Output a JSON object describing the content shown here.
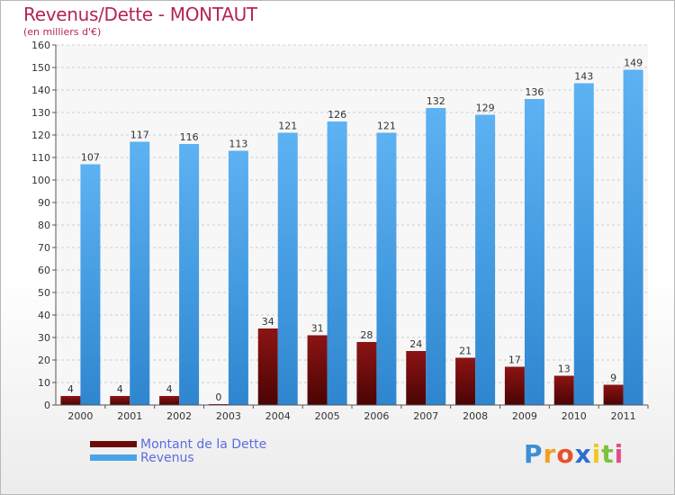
{
  "chart_data": {
    "type": "bar",
    "title": "Revenus/Dette - MONTAUT",
    "subtitle": "(en milliers d'€)",
    "categories": [
      "2000",
      "2001",
      "2002",
      "2003",
      "2004",
      "2005",
      "2006",
      "2007",
      "2008",
      "2009",
      "2010",
      "2011"
    ],
    "series": [
      {
        "name": "Montant de la Dette",
        "values": [
          4,
          4,
          4,
          0,
          34,
          31,
          28,
          24,
          21,
          17,
          13,
          9
        ],
        "color": "#6b0a0a"
      },
      {
        "name": "Revenus",
        "values": [
          107,
          117,
          116,
          113,
          121,
          126,
          121,
          132,
          129,
          136,
          143,
          149
        ],
        "color": "#4aa3e8"
      }
    ],
    "ylim": [
      0,
      160
    ],
    "yticks": [
      0,
      10,
      20,
      30,
      40,
      50,
      60,
      70,
      80,
      90,
      100,
      110,
      120,
      130,
      140,
      150,
      160
    ],
    "grid": true,
    "legend_position": "bottom-left"
  },
  "logo": {
    "letters": [
      {
        "ch": "P",
        "color": "#3a8fd6"
      },
      {
        "ch": "r",
        "color": "#f0a020"
      },
      {
        "ch": "o",
        "color": "#e8502c"
      },
      {
        "ch": "x",
        "color": "#2c6fd0"
      },
      {
        "ch": "i",
        "color": "#f2c81e"
      },
      {
        "ch": "t",
        "color": "#7cc23a"
      },
      {
        "ch": "i",
        "color": "#e84a8a"
      }
    ]
  }
}
